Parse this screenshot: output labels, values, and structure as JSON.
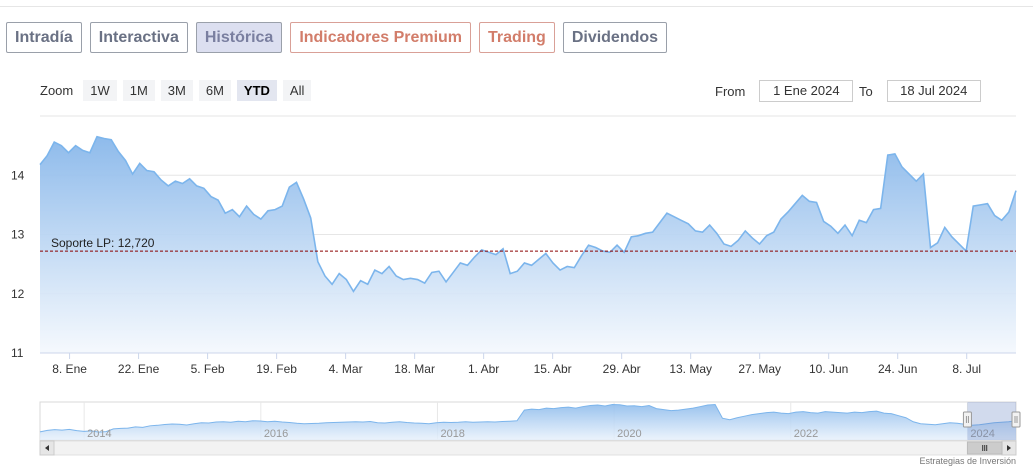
{
  "tabs": [
    {
      "label": "Intradía",
      "state": "normal"
    },
    {
      "label": "Interactiva",
      "state": "normal"
    },
    {
      "label": "Histórica",
      "state": "active"
    },
    {
      "label": "Indicadores Premium",
      "state": "premium"
    },
    {
      "label": "Trading",
      "state": "premium"
    },
    {
      "label": "Dividendos",
      "state": "normal"
    }
  ],
  "range_selector": {
    "zoom_label": "Zoom",
    "buttons": [
      "1W",
      "1M",
      "3M",
      "6M",
      "YTD",
      "All"
    ],
    "selected": "YTD",
    "from_label": "From",
    "from_value": "1 Ene 2024",
    "to_label": "To",
    "to_value": "18 Jul 2024"
  },
  "credit": "Estrategias de Inversión",
  "colors": {
    "line": "#7cb5ec",
    "fill_top": "#88b7ea",
    "fill_bottom": "#f4f8fd",
    "support": "#8b0000",
    "grid": "#e6e6e6"
  },
  "chart_data": {
    "type": "area",
    "date_range": [
      "2024-01-02",
      "2024-07-18"
    ],
    "ylim": [
      11,
      15
    ],
    "yticks": [
      11,
      12,
      13,
      14
    ],
    "grid": true,
    "x_tick_labels": [
      "8. Ene",
      "22. Ene",
      "5. Feb",
      "19. Feb",
      "4. Mar",
      "18. Mar",
      "1. Abr",
      "15. Abr",
      "29. Abr",
      "13. May",
      "27. May",
      "10. Jun",
      "24. Jun",
      "8. Jul"
    ],
    "support_line": {
      "label": "Soporte LP: 12,720",
      "value": 12.72
    },
    "series": [
      {
        "values": [
          14.18,
          14.33,
          14.56,
          14.5,
          14.38,
          14.5,
          14.42,
          14.38,
          14.65,
          14.62,
          14.6,
          14.4,
          14.25,
          14.02,
          14.2,
          14.08,
          14.06,
          13.92,
          13.82,
          13.9,
          13.86,
          13.94,
          13.82,
          13.78,
          13.64,
          13.58,
          13.36,
          13.42,
          13.3,
          13.48,
          13.34,
          13.26,
          13.4,
          13.42,
          13.48,
          13.8,
          13.88,
          13.6,
          13.28,
          12.54,
          12.3,
          12.16,
          12.34,
          12.24,
          12.04,
          12.22,
          12.16,
          12.4,
          12.34,
          12.46,
          12.3,
          12.24,
          12.26,
          12.24,
          12.18,
          12.36,
          12.38,
          12.2,
          12.36,
          12.52,
          12.48,
          12.62,
          12.74,
          12.7,
          12.66,
          12.76,
          12.34,
          12.38,
          12.52,
          12.48,
          12.58,
          12.68,
          12.52,
          12.4,
          12.46,
          12.44,
          12.64,
          12.82,
          12.78,
          12.72,
          12.7,
          12.82,
          12.7,
          12.96,
          12.98,
          13.02,
          13.04,
          13.2,
          13.36,
          13.3,
          13.24,
          13.18,
          13.06,
          13.04,
          13.16,
          13.02,
          12.84,
          12.8,
          12.9,
          13.06,
          12.94,
          12.84,
          12.98,
          13.04,
          13.26,
          13.38,
          13.52,
          13.66,
          13.56,
          13.54,
          13.22,
          13.14,
          13.02,
          13.16,
          12.98,
          13.24,
          13.2,
          13.42,
          13.44,
          14.34,
          14.36,
          14.14,
          14.02,
          13.9,
          14.02,
          12.78,
          12.86,
          13.12,
          12.96,
          12.84,
          12.72,
          13.48,
          13.5,
          13.52,
          13.32,
          13.24,
          13.38,
          13.74
        ]
      }
    ]
  },
  "navigator": {
    "year_labels": [
      "2014",
      "2016",
      "2018",
      "2020",
      "2022",
      "2024"
    ],
    "start_year": 2013.5,
    "end_year": 2024.55,
    "selected_range": [
      "2024-01-02",
      "2024-07-18"
    ],
    "values": [
      11.6,
      11.9,
      12.05,
      11.95,
      12.1,
      11.85,
      11.7,
      11.8,
      11.55,
      11.65,
      12.2,
      12.3,
      12.35,
      12.6,
      12.5,
      12.8,
      12.9,
      13.05,
      13.15,
      13.1,
      12.95,
      13.2,
      13.4,
      13.35,
      13.55,
      13.6,
      13.5,
      13.7,
      13.6,
      13.8,
      13.75,
      13.6,
      13.7,
      13.55,
      13.45,
      13.3,
      13.2,
      13.25,
      13.3,
      13.4,
      13.45,
      13.5,
      13.55,
      13.6,
      13.55,
      13.65,
      13.4,
      13.35,
      13.5,
      13.6,
      13.45,
      13.35,
      13.3,
      13.2,
      13.4,
      13.5,
      13.45,
      13.5,
      13.6,
      13.5,
      13.55,
      13.6,
      13.55,
      13.65,
      13.7,
      13.8,
      15.9,
      16.1,
      16.0,
      16.3,
      16.2,
      16.4,
      16.5,
      16.3,
      16.6,
      16.8,
      16.9,
      16.7,
      17.0,
      16.95,
      16.7,
      16.75,
      16.6,
      16.8,
      16.2,
      16.0,
      15.8,
      15.9,
      16.1,
      16.3,
      16.6,
      16.9,
      17.0,
      14.3,
      14.0,
      14.4,
      14.7,
      15.0,
      15.2,
      15.4,
      15.5,
      15.3,
      15.2,
      15.5,
      15.6,
      15.4,
      15.3,
      15.6,
      15.5,
      15.4,
      15.3,
      15.5,
      15.4,
      15.6,
      15.7,
      15.3,
      15.2,
      14.8,
      14.4,
      13.6,
      13.2,
      13.1,
      13.0,
      13.2,
      13.4,
      13.3,
      13.1,
      12.9,
      13.0,
      13.2,
      13.4,
      13.5,
      13.6,
      13.8
    ]
  }
}
